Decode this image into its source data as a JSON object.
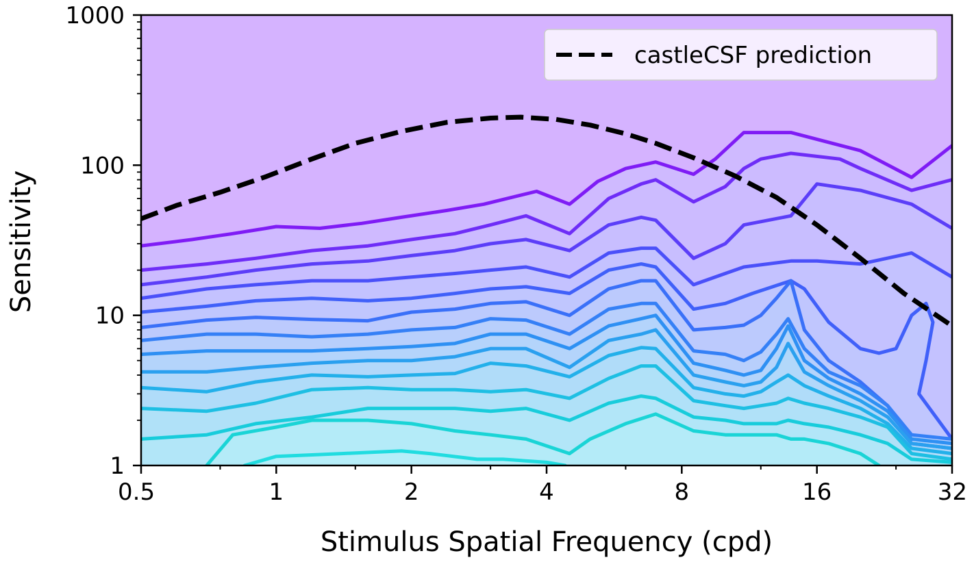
{
  "chart_data": {
    "type": "line",
    "xscale": "log2",
    "yscale": "log10",
    "xlim": [
      0.5,
      32
    ],
    "ylim": [
      1,
      1000
    ],
    "xticks": [
      0.5,
      1,
      2,
      4,
      8,
      16,
      32
    ],
    "xtick_labels": [
      "0.5",
      "1",
      "2",
      "4",
      "8",
      "16",
      "32"
    ],
    "yticks": [
      1,
      10,
      100,
      1000
    ],
    "ytick_labels": [
      "1",
      "10",
      "100",
      "1000"
    ],
    "xlabel": "Stimulus Spatial Frequency (cpd)",
    "ylabel": "Sensitivity",
    "legend": {
      "placement": "top-right",
      "entries": [
        "castleCSF prediction"
      ]
    },
    "background_color": "#d5b3ff",
    "series": [
      {
        "name": "castleCSF prediction",
        "style": "dashed",
        "color": "#000000",
        "x": [
          0.5,
          0.6,
          0.75,
          0.95,
          1.2,
          1.5,
          1.9,
          2.4,
          3.0,
          3.5,
          4.2,
          5.0,
          6.0,
          7.0,
          8.5,
          10.5,
          13.0,
          16.0,
          20.0,
          25.0,
          32.0
        ],
        "y": [
          44,
          54,
          66,
          84,
          110,
          140,
          168,
          193,
          206,
          209,
          202,
          185,
          162,
          140,
          112,
          85,
          61,
          40,
          24,
          14,
          8.5
        ]
      }
    ],
    "contours": [
      {
        "color": "#7f1cf5",
        "fill": "#cfbaff",
        "x": [
          0.5,
          0.65,
          0.8,
          0.95,
          1.0,
          1.25,
          1.55,
          1.9,
          2.4,
          2.9,
          3.8,
          4.5,
          5.2,
          6.0,
          7.0,
          8.5,
          9.5,
          11.0,
          14.0,
          20.0,
          26.0,
          32.0
        ],
        "y": [
          29,
          32,
          35,
          38,
          39,
          38,
          41,
          45,
          50,
          55,
          67,
          55,
          78,
          95,
          105,
          87,
          110,
          165,
          165,
          125,
          83,
          135
        ]
      },
      {
        "color": "#6e2df7",
        "fill": "#ccbbff",
        "x": [
          0.5,
          0.7,
          0.9,
          1.2,
          1.6,
          2.0,
          2.5,
          3.0,
          3.6,
          4.5,
          5.5,
          6.5,
          7.0,
          8.5,
          10.0,
          11.0,
          12.0,
          14.0,
          18.0,
          20.0,
          26.0,
          32.0
        ],
        "y": [
          20,
          22,
          24,
          27,
          29,
          32,
          35,
          40,
          46,
          35,
          60,
          75,
          80,
          57,
          72,
          95,
          110,
          120,
          110,
          95,
          68,
          80
        ]
      },
      {
        "color": "#5b3ef8",
        "fill": "#c8beff",
        "x": [
          0.5,
          0.7,
          0.9,
          1.2,
          1.6,
          2.0,
          2.5,
          3.0,
          3.6,
          4.5,
          5.5,
          6.5,
          7.0,
          8.5,
          10.0,
          11.0,
          14.0,
          16.0,
          20.0,
          26.0,
          32.0
        ],
        "y": [
          16,
          18,
          20,
          22,
          23,
          25,
          27,
          30,
          32,
          27,
          40,
          45,
          43,
          24,
          30,
          40,
          46,
          75,
          68,
          55,
          38
        ]
      },
      {
        "color": "#4a50f9",
        "fill": "#c4c2ff",
        "x": [
          0.5,
          0.7,
          0.9,
          1.2,
          1.6,
          2.0,
          2.5,
          3.0,
          3.6,
          4.5,
          5.5,
          6.5,
          7.0,
          8.5,
          10.0,
          11.0,
          14.0,
          16.0,
          20.0,
          26.0,
          32.0
        ],
        "y": [
          13,
          15,
          16,
          17,
          17,
          18,
          19,
          20,
          21,
          18,
          26,
          28,
          28,
          16,
          19,
          21,
          23,
          23,
          22,
          26,
          18
        ]
      },
      {
        "color": "#4060f9",
        "fill": "#c0c6fe",
        "x": [
          0.5,
          0.7,
          0.9,
          1.2,
          1.6,
          2.0,
          2.5,
          3.0,
          3.6,
          4.5,
          5.5,
          6.5,
          7.0,
          8.5,
          10.0,
          11.5,
          14.0,
          15.0,
          17.0,
          20.0,
          22.0,
          24.0,
          26.0,
          28.0,
          29.0,
          28.0,
          27.0,
          32.0
        ],
        "y": [
          10.5,
          11.5,
          12.5,
          13,
          12.5,
          13,
          14,
          15,
          15.5,
          14,
          20,
          22,
          21,
          11,
          12,
          14,
          17,
          15,
          9,
          6,
          5.6,
          6,
          10,
          12,
          9,
          5,
          3,
          1.5
        ]
      },
      {
        "color": "#3a70f8",
        "fill": "#bccafd",
        "x": [
          0.5,
          0.7,
          0.9,
          1.2,
          1.6,
          2.0,
          2.5,
          3.0,
          3.6,
          4.5,
          5.5,
          6.5,
          7.0,
          8.5,
          10.0,
          11.0,
          12.0,
          13.0,
          14.0,
          15.0,
          17.0,
          20.0,
          23.0,
          26.0,
          32.0
        ],
        "y": [
          8.3,
          9.3,
          9.7,
          9.4,
          9.2,
          10.5,
          11,
          12,
          12.3,
          10,
          15,
          17,
          17,
          8,
          8.3,
          8.6,
          10,
          13,
          17,
          8,
          5,
          3.6,
          2.5,
          1.4,
          1.3
        ]
      },
      {
        "color": "#3580f6",
        "fill": "#b8cffc",
        "x": [
          0.5,
          0.7,
          0.9,
          1.2,
          1.6,
          2.0,
          2.5,
          3.0,
          3.6,
          4.5,
          5.5,
          6.5,
          7.0,
          8.5,
          10.0,
          11.0,
          12.0,
          13.0,
          13.8,
          15.0,
          17.0,
          20.0,
          23.0,
          26.0,
          32.0
        ],
        "y": [
          6.8,
          7.5,
          7.5,
          7.2,
          7.5,
          8,
          8.3,
          9.5,
          9.3,
          7.5,
          11,
          12,
          12,
          5.8,
          5.5,
          5,
          5.7,
          7.5,
          9.5,
          6,
          4.2,
          3.4,
          2.5,
          1.6,
          1.5
        ]
      },
      {
        "color": "#2e90f3",
        "fill": "#b4d4fb",
        "x": [
          0.5,
          0.7,
          0.9,
          1.2,
          1.6,
          2.0,
          2.5,
          3.0,
          3.6,
          4.5,
          5.5,
          6.5,
          7.0,
          8.5,
          10.0,
          11.0,
          12.0,
          13.0,
          13.8,
          15.0,
          17.0,
          20.0,
          23.0,
          26.0,
          32.0
        ],
        "y": [
          5.5,
          5.8,
          5.8,
          5.8,
          6.0,
          6.2,
          6.5,
          7.5,
          7.5,
          6.0,
          8.5,
          9.5,
          10,
          4.8,
          4.3,
          4.0,
          4.3,
          6.0,
          8.5,
          5.0,
          3.8,
          3.0,
          2.3,
          1.5,
          1.4
        ]
      },
      {
        "color": "#2aa0ef",
        "fill": "#b2d8fa",
        "x": [
          0.5,
          0.7,
          0.9,
          1.2,
          1.6,
          2.0,
          2.5,
          3.0,
          3.6,
          4.5,
          5.5,
          6.5,
          7.0,
          8.5,
          10.0,
          11.0,
          12.0,
          13.0,
          13.8,
          15.0,
          17.0,
          20.0,
          23.0,
          26.0,
          32.0
        ],
        "y": [
          4.2,
          4.2,
          4.5,
          4.8,
          5.0,
          5.0,
          5.3,
          6.0,
          6.0,
          4.5,
          6.8,
          7.5,
          8.0,
          4.0,
          3.6,
          3.4,
          3.6,
          4.5,
          6.5,
          4.2,
          3.4,
          2.7,
          2.1,
          1.4,
          1.3
        ]
      },
      {
        "color": "#23b0ea",
        "fill": "#b0dcf9",
        "x": [
          0.5,
          0.7,
          0.9,
          1.2,
          1.6,
          2.0,
          2.5,
          3.0,
          3.6,
          4.5,
          5.5,
          6.5,
          7.0,
          8.5,
          10.0,
          11.0,
          12.0,
          13.0,
          13.8,
          15.0,
          17.0,
          20.0,
          23.0,
          26.0,
          32.0
        ],
        "y": [
          3.3,
          3.1,
          3.6,
          4.0,
          3.9,
          4.0,
          4.1,
          4.8,
          4.6,
          3.9,
          5.4,
          6.1,
          6.0,
          3.3,
          3.0,
          2.9,
          3.1,
          3.6,
          4.0,
          3.4,
          2.9,
          2.4,
          1.9,
          1.3,
          1.2
        ]
      },
      {
        "color": "#1ebfe3",
        "fill": "#b0e1f8",
        "x": [
          0.5,
          0.7,
          0.9,
          1.2,
          1.6,
          2.0,
          2.5,
          3.0,
          3.6,
          4.5,
          5.5,
          6.5,
          7.0,
          8.5,
          10.0,
          11.0,
          12.0,
          13.0,
          13.8,
          15.0,
          17.0,
          20.0,
          23.0,
          26.0,
          32.0
        ],
        "y": [
          2.4,
          2.3,
          2.6,
          3.2,
          3.3,
          3.2,
          3.2,
          3.1,
          3.2,
          2.8,
          3.8,
          4.6,
          4.6,
          2.7,
          2.5,
          2.4,
          2.5,
          2.6,
          2.8,
          2.6,
          2.4,
          2.1,
          1.8,
          1.2,
          1.1
        ]
      },
      {
        "color": "#18ccdb",
        "fill": "#b2e6f8",
        "x": [
          0.5,
          0.7,
          0.9,
          1.2,
          1.6,
          2.0,
          2.5,
          3.0,
          3.6,
          4.5,
          5.5,
          6.5,
          7.0,
          8.5,
          10.0,
          11.0,
          12.0,
          13.0,
          13.8,
          15.0,
          17.0,
          20.0,
          23.0,
          26.0,
          32.0
        ],
        "y": [
          1.5,
          1.6,
          1.9,
          2.1,
          2.4,
          2.4,
          2.4,
          2.3,
          2.4,
          2.0,
          2.6,
          2.9,
          2.8,
          2.1,
          2.0,
          1.9,
          1.9,
          1.9,
          2.0,
          1.9,
          1.8,
          1.6,
          1.4,
          1.1,
          1.05
        ]
      },
      {
        "color": "#1ad4d6",
        "fill": "#b4ebf8",
        "x": [
          0.7,
          0.8,
          1.0,
          1.2,
          1.6,
          2.0,
          2.5,
          3.0,
          3.6,
          4.5,
          5.0,
          6.0,
          7.0,
          8.5,
          10.0,
          11.0,
          13.0,
          14.0,
          15.0,
          17.0,
          20.0,
          22.0
        ],
        "y": [
          1.0,
          1.6,
          1.8,
          2.0,
          2.0,
          1.9,
          1.7,
          1.6,
          1.5,
          1.2,
          1.5,
          1.9,
          2.2,
          1.7,
          1.6,
          1.6,
          1.6,
          1.5,
          1.5,
          1.4,
          1.2,
          1.0
        ]
      },
      {
        "color": "#21dce0",
        "fill": "#b6eef9",
        "x": [
          0.85,
          1.0,
          1.4,
          1.9,
          2.2,
          2.8,
          3.2,
          4.0,
          4.4
        ],
        "y": [
          1.0,
          1.15,
          1.2,
          1.25,
          1.2,
          1.1,
          1.1,
          1.05,
          1.0
        ]
      }
    ]
  }
}
